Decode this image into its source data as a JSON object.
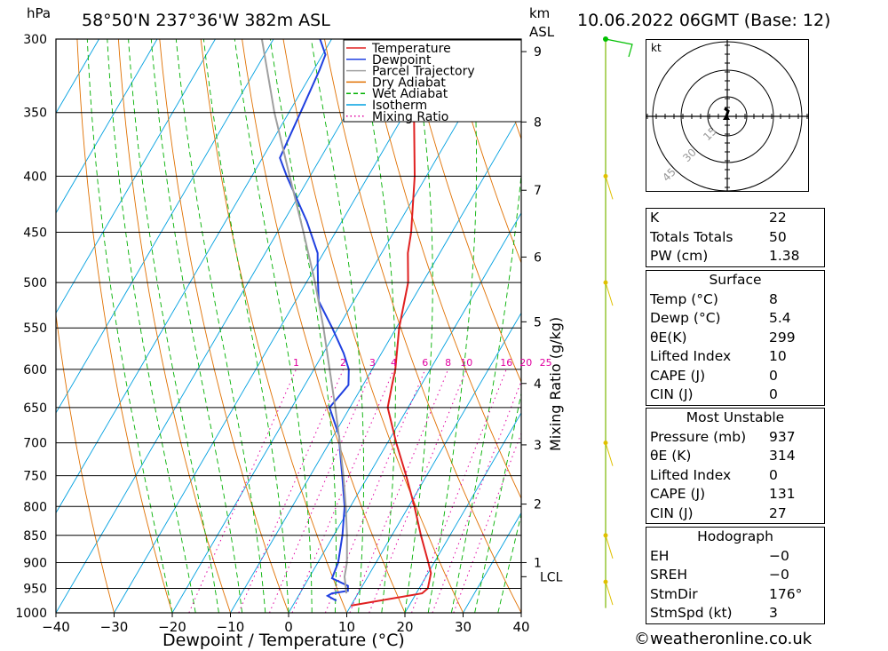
{
  "header": {
    "location": "58°50'N 237°36'W 382m ASL",
    "datetime": "10.06.2022 06GMT (Base: 12)",
    "pressure_unit": "hPa",
    "height_unit": "km",
    "height_unit2": "ASL"
  },
  "chart_data": {
    "type": "line",
    "title": "58°50'N 237°36'W 382m ASL",
    "xlabel": "Dewpoint / Temperature (°C)",
    "ylabel": "hPa",
    "y2label": "Mixing Ratio (g/kg)",
    "xlim": [
      -40,
      40
    ],
    "ylim": [
      1000,
      300
    ],
    "x_ticks": [
      -40,
      -30,
      -20,
      -10,
      0,
      10,
      20,
      30,
      40
    ],
    "x_tick_labels": [
      "−40",
      "−30",
      "−20",
      "−10",
      "0",
      "10",
      "20",
      "30",
      "40"
    ],
    "pressure_levels": [
      300,
      350,
      400,
      450,
      500,
      550,
      600,
      650,
      700,
      750,
      800,
      850,
      900,
      950,
      1000
    ],
    "height_ticks": [
      {
        "km": "1",
        "p": 900
      },
      {
        "km": "2",
        "p": 796
      },
      {
        "km": "3",
        "p": 703
      },
      {
        "km": "4",
        "p": 618
      },
      {
        "km": "5",
        "p": 543
      },
      {
        "km": "6",
        "p": 474
      },
      {
        "km": "7",
        "p": 412
      },
      {
        "km": "8",
        "p": 357
      },
      {
        "km": "9",
        "p": 308
      }
    ],
    "lcl": {
      "label": "LCL",
      "p": 927
    },
    "mixing_ratio_labels": [
      "1",
      "2",
      "3",
      "4",
      "6",
      "8",
      "10",
      "16",
      "20",
      "25"
    ],
    "legend": [
      {
        "name": "Temperature",
        "color": "#e02020",
        "style": "solid"
      },
      {
        "name": "Dewpoint",
        "color": "#2040e0",
        "style": "solid"
      },
      {
        "name": "Parcel Trajectory",
        "color": "#a0a0a0",
        "style": "solid"
      },
      {
        "name": "Dry Adiabat",
        "color": "#e07000",
        "style": "solid"
      },
      {
        "name": "Wet Adiabat",
        "color": "#00b000",
        "style": "dashed"
      },
      {
        "name": "Isotherm",
        "color": "#00a0e0",
        "style": "solid"
      },
      {
        "name": "Mixing Ratio",
        "color": "#e000a0",
        "style": "dotted"
      }
    ],
    "legend_position": "top-right",
    "series": [
      {
        "name": "Temperature",
        "color": "#e02020",
        "points": [
          [
            985,
            10
          ],
          [
            960,
            21
          ],
          [
            950,
            21.5
          ],
          [
            920,
            20.5
          ],
          [
            900,
            19
          ],
          [
            850,
            15
          ],
          [
            800,
            11
          ],
          [
            750,
            6.5
          ],
          [
            700,
            1.5
          ],
          [
            650,
            -3.5
          ],
          [
            620,
            -5
          ],
          [
            600,
            -6
          ],
          [
            550,
            -9.5
          ],
          [
            500,
            -12.5
          ],
          [
            470,
            -15.5
          ],
          [
            450,
            -17
          ],
          [
            400,
            -22
          ],
          [
            350,
            -28.5
          ],
          [
            300,
            -34
          ]
        ]
      },
      {
        "name": "Dewpoint",
        "color": "#2040e0",
        "points": [
          [
            975,
            7
          ],
          [
            965,
            5
          ],
          [
            960,
            5.5
          ],
          [
            955,
            8
          ],
          [
            945,
            7.5
          ],
          [
            930,
            4
          ],
          [
            900,
            3.5
          ],
          [
            850,
            1.5
          ],
          [
            800,
            -1
          ],
          [
            750,
            -4.5
          ],
          [
            710,
            -7.5
          ],
          [
            690,
            -9
          ],
          [
            650,
            -13.5
          ],
          [
            635,
            -13
          ],
          [
            620,
            -12.5
          ],
          [
            600,
            -14
          ],
          [
            580,
            -16.5
          ],
          [
            550,
            -21
          ],
          [
            520,
            -26
          ],
          [
            500,
            -28
          ],
          [
            480,
            -30
          ],
          [
            470,
            -31
          ],
          [
            440,
            -36
          ],
          [
            400,
            -44
          ],
          [
            385,
            -47
          ],
          [
            350,
            -48
          ],
          [
            320,
            -49
          ],
          [
            310,
            -49.5
          ],
          [
            300,
            -52
          ]
        ]
      },
      {
        "name": "Parcel Trajectory",
        "color": "#a0a0a0",
        "points": [
          [
            960,
            8
          ],
          [
            927,
            6
          ],
          [
            900,
            5
          ],
          [
            850,
            2.3
          ],
          [
            800,
            -0.8
          ],
          [
            750,
            -4.3
          ],
          [
            700,
            -8.2
          ],
          [
            650,
            -12.5
          ],
          [
            600,
            -17.3
          ],
          [
            550,
            -22.5
          ],
          [
            500,
            -28.5
          ],
          [
            450,
            -35.5
          ],
          [
            400,
            -43.5
          ],
          [
            350,
            -52.5
          ],
          [
            300,
            -62
          ]
        ]
      }
    ],
    "wind_barbs_p": [
      300,
      400,
      500,
      700,
      850,
      937
    ]
  },
  "indices": {
    "rows": [
      {
        "label": "K",
        "value": "22"
      },
      {
        "label": "Totals Totals",
        "value": "50"
      },
      {
        "label": "PW (cm)",
        "value": "1.38"
      }
    ],
    "surface": {
      "title": "Surface",
      "rows": [
        {
          "label": "Temp (°C)",
          "value": "8"
        },
        {
          "label": "Dewp (°C)",
          "value": "5.4"
        },
        {
          "label": "θE(K)",
          "value": "299"
        },
        {
          "label": "Lifted Index",
          "value": "10"
        },
        {
          "label": "CAPE (J)",
          "value": "0"
        },
        {
          "label": "CIN (J)",
          "value": "0"
        }
      ]
    },
    "most_unstable": {
      "title": "Most Unstable",
      "rows": [
        {
          "label": "Pressure (mb)",
          "value": "937"
        },
        {
          "label": "θE (K)",
          "value": "314"
        },
        {
          "label": "Lifted Index",
          "value": "0"
        },
        {
          "label": "CAPE (J)",
          "value": "131"
        },
        {
          "label": "CIN (J)",
          "value": "27"
        }
      ]
    },
    "hodograph": {
      "title": "Hodograph",
      "rows": [
        {
          "label": "EH",
          "value": "−0"
        },
        {
          "label": "SREH",
          "value": "−0"
        },
        {
          "label": "StmDir",
          "value": "176°"
        },
        {
          "label": "StmSpd (kt)",
          "value": "3"
        }
      ]
    }
  },
  "hodograph_plot": {
    "unit": "kt",
    "rings": [
      "15",
      "30",
      "45"
    ]
  },
  "credit": "©weatheronline.co.uk"
}
